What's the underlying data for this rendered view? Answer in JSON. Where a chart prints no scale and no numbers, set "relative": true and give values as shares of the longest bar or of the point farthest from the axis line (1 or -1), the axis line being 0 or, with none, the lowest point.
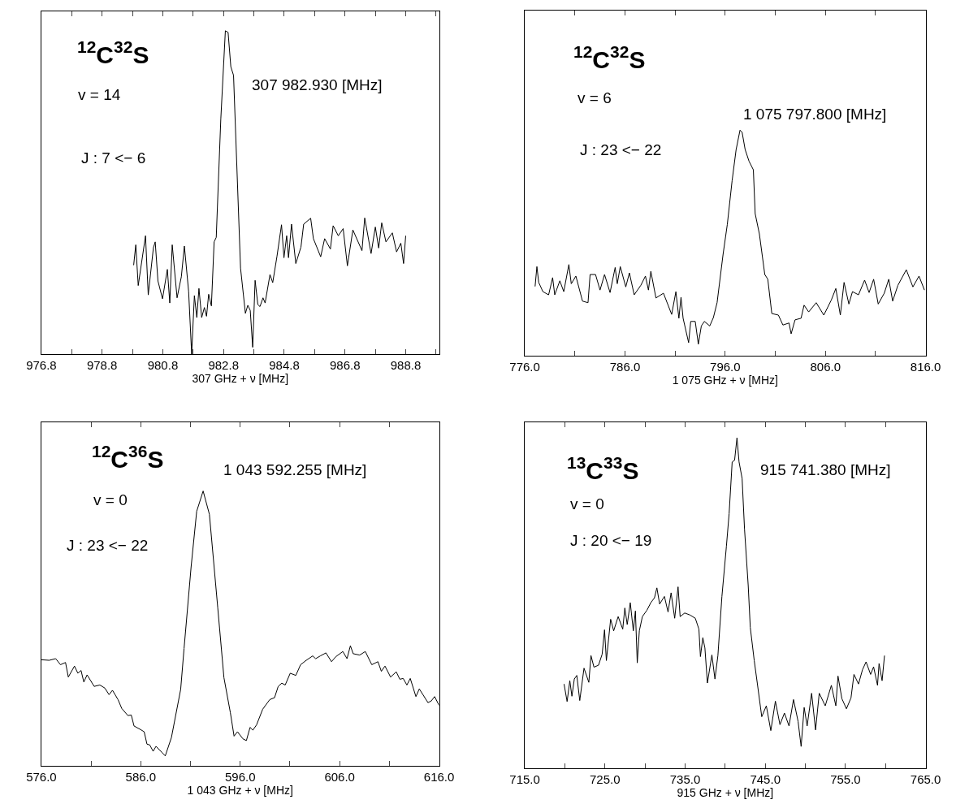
{
  "chart_data": [
    {
      "type": "line",
      "relative": true,
      "color": "#000000",
      "tick_labels": "x",
      "xlabel": "307 GHz + ν [MHz]",
      "xlim": [
        976.8,
        989.9
      ],
      "xticks": [
        976.8,
        {
          "value": 977.8,
          "label": null
        },
        978.8,
        {
          "value": 979.8,
          "label": null
        },
        980.8,
        {
          "value": 981.8,
          "label": null
        },
        982.8,
        {
          "value": 983.8,
          "label": null
        },
        984.8,
        {
          "value": 985.8,
          "label": null
        },
        986.8,
        {
          "value": 987.8,
          "label": null
        },
        988.8,
        {
          "value": 989.8,
          "label": null
        }
      ],
      "annotations": [
        "$^{12}$C$^{32}$S",
        "v = 14",
        "J : 7 <− 6",
        "307 982.930 [MHz]"
      ],
      "x": [
        979.84,
        979.91,
        979.99,
        980.23,
        980.32,
        980.49,
        980.55,
        980.64,
        980.79,
        980.95,
        981.03,
        981.11,
        981.27,
        981.41,
        981.51,
        981.65,
        981.75,
        981.84,
        981.92,
        981.99,
        982.08,
        982.17,
        982.24,
        982.31,
        982.4,
        982.49,
        982.56,
        982.71,
        982.86,
        982.95,
        983.04,
        983.13,
        983.36,
        983.52,
        983.6,
        983.68,
        983.76,
        983.84,
        983.93,
        984.0,
        984.1,
        984.17,
        984.33,
        984.42,
        984.56,
        984.71,
        984.79,
        984.88,
        984.94,
        985.04,
        985.18,
        985.35,
        985.44,
        985.67,
        985.76,
        986.0,
        986.13,
        986.32,
        986.41,
        986.58,
        986.74,
        986.88,
        987.06,
        987.36,
        987.45,
        987.66,
        987.8,
        987.91,
        988.01,
        988.15,
        988.36,
        988.5,
        988.64,
        988.73,
        988.8
      ],
      "values": [
        0.275,
        0.338,
        0.212,
        0.366,
        0.183,
        0.329,
        0.347,
        0.226,
        0.171,
        0.262,
        0.158,
        0.338,
        0.174,
        0.239,
        0.334,
        0.194,
        0.0,
        0.181,
        0.113,
        0.203,
        0.113,
        0.144,
        0.117,
        0.185,
        0.149,
        0.347,
        0.361,
        0.727,
        1.0,
        0.995,
        0.889,
        0.862,
        0.266,
        0.126,
        0.151,
        0.135,
        0.021,
        0.228,
        0.153,
        0.147,
        0.174,
        0.158,
        0.246,
        0.221,
        0.302,
        0.4,
        0.298,
        0.366,
        0.298,
        0.402,
        0.28,
        0.331,
        0.402,
        0.42,
        0.357,
        0.301,
        0.357,
        0.325,
        0.397,
        0.366,
        0.388,
        0.273,
        0.384,
        0.32,
        0.421,
        0.311,
        0.393,
        0.328,
        0.406,
        0.347,
        0.375,
        0.316,
        0.343,
        0.28,
        0.366
      ]
    },
    {
      "type": "line",
      "relative": true,
      "color": "#000000",
      "tick_labels": "x",
      "xlabel": "1 075 GHz + ν [MHz]",
      "xlim": [
        776.0,
        816.0
      ],
      "xticks": [
        {
          "value": 776.0,
          "label": "776.0"
        },
        {
          "value": 781.0,
          "label": null
        },
        {
          "value": 786.0,
          "label": "786.0"
        },
        {
          "value": 791.0,
          "label": null
        },
        {
          "value": 796.0,
          "label": "796.0"
        },
        {
          "value": 801.0,
          "label": null
        },
        {
          "value": 806.0,
          "label": "806.0"
        },
        {
          "value": 811.0,
          "label": null
        },
        {
          "value": 816.0,
          "label": "816.0"
        }
      ],
      "annotations": [
        "$^{12}$C$^{32}$S",
        "v = 6",
        "J : 23 <− 22",
        "1 075 797.800 [MHz]"
      ],
      "x": [
        777.03,
        777.21,
        777.39,
        777.81,
        778.38,
        778.78,
        778.99,
        779.5,
        779.89,
        780.4,
        780.64,
        781.1,
        781.76,
        782.31,
        782.52,
        783.06,
        783.51,
        783.96,
        784.51,
        785.02,
        785.23,
        785.53,
        786.08,
        786.44,
        786.92,
        787.58,
        788.04,
        788.34,
        788.58,
        789.09,
        789.84,
        790.66,
        791.08,
        791.38,
        791.59,
        791.8,
        792.35,
        792.56,
        793.01,
        793.32,
        793.62,
        793.92,
        794.46,
        794.82,
        795.19,
        795.79,
        796.21,
        796.69,
        797.09,
        797.48,
        797.69,
        797.99,
        798.38,
        798.81,
        798.99,
        799.41,
        799.95,
        800.25,
        800.65,
        801.31,
        801.76,
        802.37,
        802.58,
        802.97,
        803.57,
        803.87,
        804.33,
        805.08,
        805.84,
        806.59,
        807.04,
        807.49,
        807.86,
        808.34,
        808.7,
        809.3,
        809.91,
        810.36,
        810.81,
        811.27,
        811.87,
        812.32,
        812.71,
        813.23,
        814.07,
        814.73,
        815.34,
        815.88
      ],
      "values": [
        0.307,
        0.395,
        0.325,
        0.284,
        0.27,
        0.346,
        0.27,
        0.332,
        0.284,
        0.404,
        0.319,
        0.353,
        0.242,
        0.235,
        0.36,
        0.36,
        0.291,
        0.36,
        0.28,
        0.391,
        0.319,
        0.395,
        0.305,
        0.367,
        0.27,
        0.312,
        0.353,
        0.291,
        0.374,
        0.256,
        0.277,
        0.183,
        0.284,
        0.166,
        0.259,
        0.166,
        0.058,
        0.152,
        0.152,
        0.051,
        0.132,
        0.152,
        0.132,
        0.169,
        0.235,
        0.45,
        0.582,
        0.776,
        0.914,
        1.0,
        0.99,
        0.914,
        0.862,
        0.824,
        0.63,
        0.54,
        0.36,
        0.339,
        0.187,
        0.18,
        0.136,
        0.145,
        0.097,
        0.159,
        0.166,
        0.224,
        0.194,
        0.235,
        0.18,
        0.247,
        0.298,
        0.18,
        0.325,
        0.229,
        0.284,
        0.27,
        0.335,
        0.28,
        0.339,
        0.229,
        0.277,
        0.339,
        0.242,
        0.312,
        0.381,
        0.305,
        0.353,
        0.291
      ]
    },
    {
      "type": "line",
      "relative": true,
      "color": "#000000",
      "tick_labels": "x",
      "xlabel": "1 043 GHz + ν [MHz]",
      "xlim": [
        576.0,
        616.0
      ],
      "xticks": [
        {
          "value": 576.0,
          "label": "576.0"
        },
        {
          "value": 581.0,
          "label": null
        },
        {
          "value": 586.0,
          "label": "586.0"
        },
        {
          "value": 591.0,
          "label": null
        },
        {
          "value": 596.0,
          "label": "596.0"
        },
        {
          "value": 601.0,
          "label": null
        },
        {
          "value": 606.0,
          "label": "606.0"
        },
        {
          "value": 611.0,
          "label": null
        },
        {
          "value": 616.0,
          "label": "616.0"
        }
      ],
      "annotations": [
        "$^{12}$C$^{36}$S",
        "v = 0",
        "J : 23 <− 22",
        "1 043 592.255 [MHz]"
      ],
      "x": [
        576.0,
        576.79,
        577.44,
        577.92,
        578.43,
        578.71,
        579.33,
        579.67,
        579.99,
        580.27,
        580.6,
        581.31,
        581.88,
        582.38,
        582.81,
        583.15,
        583.71,
        584.08,
        584.7,
        585.04,
        585.32,
        585.97,
        586.34,
        586.62,
        586.9,
        587.24,
        587.53,
        588.09,
        588.46,
        589.08,
        590.01,
        590.35,
        591.06,
        591.62,
        592.27,
        592.9,
        593.74,
        594.36,
        595.01,
        595.38,
        595.72,
        596.28,
        596.62,
        596.99,
        597.27,
        597.64,
        598.26,
        598.97,
        599.45,
        599.82,
        600.18,
        600.52,
        601.03,
        601.59,
        602.07,
        602.64,
        603.29,
        603.58,
        604.06,
        604.62,
        605.18,
        605.61,
        606.32,
        606.74,
        607.08,
        607.36,
        608.01,
        608.58,
        609.23,
        609.85,
        610.19,
        610.56,
        611.12,
        611.69,
        612.05,
        612.39,
        612.76,
        613.1,
        613.67,
        614.01,
        614.88,
        615.21,
        615.55,
        616.0
      ],
      "values": [
        0.386,
        0.384,
        0.39,
        0.368,
        0.376,
        0.323,
        0.363,
        0.337,
        0.347,
        0.305,
        0.331,
        0.289,
        0.294,
        0.283,
        0.259,
        0.275,
        0.241,
        0.209,
        0.183,
        0.185,
        0.145,
        0.132,
        0.124,
        0.079,
        0.076,
        0.053,
        0.071,
        0.05,
        0.036,
        0.103,
        0.278,
        0.427,
        0.724,
        0.926,
        1.0,
        0.915,
        0.575,
        0.321,
        0.193,
        0.108,
        0.124,
        0.098,
        0.092,
        0.14,
        0.13,
        0.149,
        0.206,
        0.241,
        0.248,
        0.289,
        0.301,
        0.294,
        0.337,
        0.329,
        0.368,
        0.384,
        0.4,
        0.39,
        0.4,
        0.411,
        0.379,
        0.397,
        0.416,
        0.39,
        0.437,
        0.408,
        0.403,
        0.416,
        0.368,
        0.379,
        0.344,
        0.363,
        0.323,
        0.342,
        0.315,
        0.318,
        0.294,
        0.318,
        0.252,
        0.28,
        0.23,
        0.236,
        0.252,
        0.22
      ]
    },
    {
      "type": "line",
      "relative": true,
      "color": "#000000",
      "tick_labels": "x",
      "xlabel": "915 GHz + ν [MHz]",
      "xlim": [
        715.0,
        765.0
      ],
      "xticks": [
        {
          "value": 715.0,
          "label": "715.0"
        },
        {
          "value": 720.0,
          "label": null
        },
        {
          "value": 725.0,
          "label": "725.0"
        },
        {
          "value": 730.0,
          "label": null
        },
        {
          "value": 735.0,
          "label": "735.0"
        },
        {
          "value": 740.0,
          "label": null
        },
        {
          "value": 745.0,
          "label": "745.0"
        },
        {
          "value": 750.0,
          "label": null
        },
        {
          "value": 755.0,
          "label": "755.0"
        },
        {
          "value": 760.0,
          "label": null
        },
        {
          "value": 765.0,
          "label": "765.0"
        }
      ],
      "annotations": [
        "$^{13}$C$^{33}$S",
        "v = 0",
        "J : 20 <− 19",
        "915 741.380 [MHz]"
      ],
      "x": [
        719.9,
        720.28,
        720.62,
        720.88,
        721.18,
        721.49,
        721.86,
        722.39,
        722.99,
        723.26,
        723.63,
        724.2,
        724.65,
        724.95,
        725.18,
        725.71,
        726.09,
        726.65,
        727.22,
        727.48,
        727.78,
        728.16,
        728.54,
        728.8,
        729.03,
        729.29,
        729.67,
        730.23,
        730.72,
        731.18,
        731.48,
        731.82,
        732.42,
        732.87,
        733.25,
        733.7,
        734.12,
        734.38,
        734.95,
        735.59,
        736.27,
        736.72,
        736.91,
        737.21,
        737.47,
        737.78,
        738.34,
        738.72,
        739.09,
        739.59,
        740.15,
        740.49,
        740.87,
        741.17,
        741.47,
        741.73,
        742.11,
        742.41,
        742.87,
        743.13,
        743.62,
        744.0,
        744.56,
        745.13,
        745.69,
        746.26,
        746.83,
        747.39,
        747.96,
        748.52,
        749.09,
        749.47,
        749.85,
        750.22,
        750.78,
        751.27,
        751.73,
        752.48,
        753.24,
        753.8,
        754.07,
        754.55,
        755.12,
        755.69,
        756.06,
        756.63,
        757.12,
        757.57,
        758.14,
        758.51,
        759.0,
        759.19,
        759.57,
        759.87
      ],
      "values": [
        0.255,
        0.202,
        0.265,
        0.218,
        0.27,
        0.281,
        0.205,
        0.303,
        0.26,
        0.341,
        0.306,
        0.312,
        0.345,
        0.419,
        0.326,
        0.451,
        0.416,
        0.459,
        0.421,
        0.485,
        0.435,
        0.501,
        0.416,
        0.476,
        0.319,
        0.416,
        0.459,
        0.478,
        0.501,
        0.516,
        0.546,
        0.497,
        0.52,
        0.473,
        0.531,
        0.454,
        0.549,
        0.459,
        0.47,
        0.464,
        0.454,
        0.421,
        0.338,
        0.395,
        0.364,
        0.258,
        0.343,
        0.27,
        0.341,
        0.52,
        0.672,
        0.771,
        0.927,
        0.932,
        1.0,
        0.927,
        0.877,
        0.724,
        0.553,
        0.426,
        0.326,
        0.258,
        0.156,
        0.189,
        0.114,
        0.203,
        0.132,
        0.167,
        0.128,
        0.208,
        0.142,
        0.066,
        0.184,
        0.128,
        0.227,
        0.116,
        0.227,
        0.189,
        0.251,
        0.189,
        0.279,
        0.211,
        0.18,
        0.213,
        0.284,
        0.255,
        0.298,
        0.322,
        0.284,
        0.307,
        0.251,
        0.317,
        0.265,
        0.341
      ]
    }
  ]
}
